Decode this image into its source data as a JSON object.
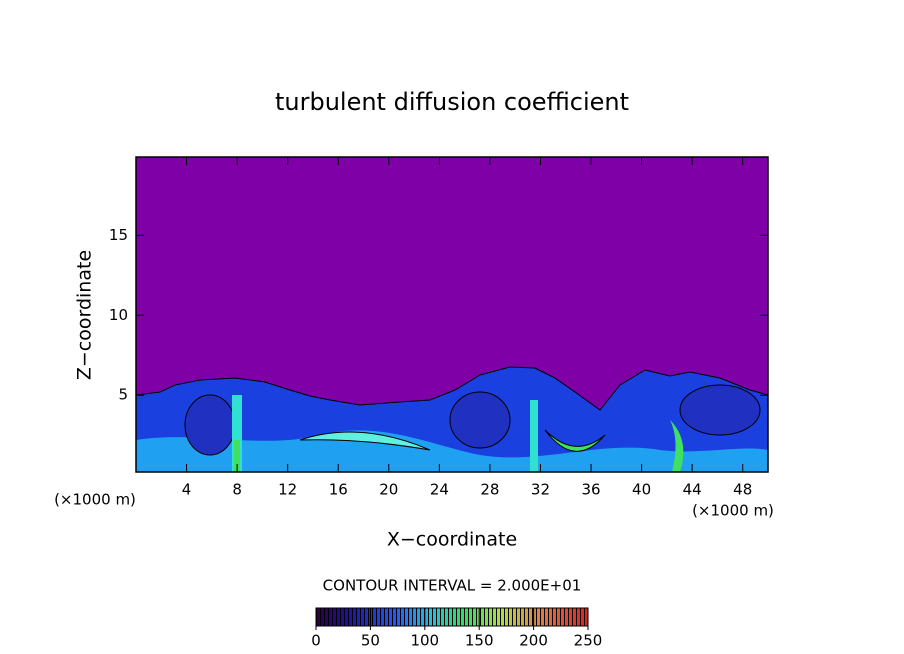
{
  "chart_data": {
    "type": "contour",
    "title": "turbulent diffusion coefficient",
    "xlabel": "X−coordinate",
    "ylabel": "Z−coordinate",
    "x_unit_left": "(×1000 m)",
    "x_unit_right": "(×1000 m)",
    "contour_interval": "CONTOUR INTERVAL = 2.000E+01",
    "xlim": [
      0,
      50
    ],
    "xticks": [
      4,
      8,
      12,
      16,
      20,
      24,
      28,
      32,
      36,
      40,
      44,
      48
    ],
    "ylim": [
      0.2,
      19.9
    ],
    "yticks": [
      5,
      10,
      15
    ],
    "colorbar_lim": [
      0,
      250
    ],
    "colorbar_ticks": [
      0,
      50,
      100,
      150,
      200,
      250
    ]
  }
}
